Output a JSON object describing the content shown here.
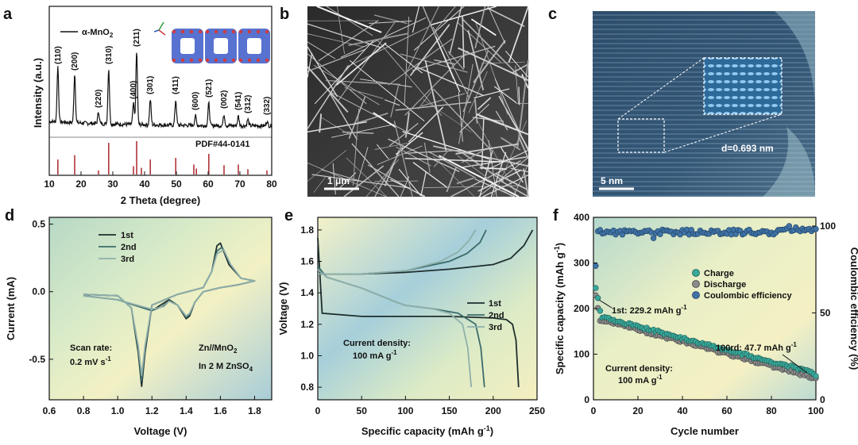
{
  "panels": {
    "a": {
      "letter": "a",
      "legend": "α-MnO",
      "legend_sub": "2",
      "ylabel": "Intensity (a.u.)",
      "xlabel": "2 Theta (degree)",
      "pdf": "PDF#44-0141",
      "xticks": [
        "10",
        "20",
        "30",
        "40",
        "50",
        "60",
        "70",
        "80"
      ],
      "peaks": [
        {
          "label": "(110)",
          "x": 12.7
        },
        {
          "label": "(200)",
          "x": 18.0
        },
        {
          "label": "(220)",
          "x": 25.5
        },
        {
          "label": "(310)",
          "x": 28.7
        },
        {
          "label": "(400)",
          "x": 36.5
        },
        {
          "label": "(211)",
          "x": 37.5
        },
        {
          "label": "(301)",
          "x": 41.8
        },
        {
          "label": "(411)",
          "x": 49.8
        },
        {
          "label": "(600)",
          "x": 56.0
        },
        {
          "label": "(521)",
          "x": 60.2
        },
        {
          "label": "(002)",
          "x": 65.0
        },
        {
          "label": "(541)",
          "x": 69.5
        },
        {
          "label": "(312)",
          "x": 72.5
        },
        {
          "label": "(332)",
          "x": 78.5
        }
      ],
      "ref_lines": [
        {
          "x": 12.7,
          "h": 0.45
        },
        {
          "x": 18.0,
          "h": 0.58
        },
        {
          "x": 25.5,
          "h": 0.12
        },
        {
          "x": 28.7,
          "h": 0.95
        },
        {
          "x": 36.5,
          "h": 0.25
        },
        {
          "x": 37.5,
          "h": 1.0
        },
        {
          "x": 39.0,
          "h": 0.2
        },
        {
          "x": 41.8,
          "h": 0.45
        },
        {
          "x": 49.8,
          "h": 0.5
        },
        {
          "x": 55.5,
          "h": 0.3
        },
        {
          "x": 56.3,
          "h": 0.18
        },
        {
          "x": 60.2,
          "h": 0.62
        },
        {
          "x": 65.0,
          "h": 0.28
        },
        {
          "x": 69.5,
          "h": 0.3
        },
        {
          "x": 72.5,
          "h": 0.16
        },
        {
          "x": 78.5,
          "h": 0.12
        }
      ]
    },
    "b": {
      "letter": "b",
      "scale": "1 μm"
    },
    "c": {
      "letter": "c",
      "scale": "5 nm",
      "dspacing": "d=0.693 nm"
    },
    "d": {
      "letter": "d",
      "scan_rate": "Scan rate:",
      "scan_rate_value": "0.2 mV s",
      "scan_rate_sup": "-1",
      "cell": "Zn//MnO",
      "cell_sub": "2",
      "electrolyte": "In 2 M ZnSO",
      "electrolyte_sub": "4"
    },
    "e": {
      "letter": "e",
      "current_density": "Current density:",
      "current_density_value": "100 mA g",
      "current_density_sup": "-1"
    },
    "f": {
      "letter": "f",
      "first": "1st: 229.2 mAh g",
      "first_sup": "-1",
      "hundredth": "100rd: 47.7 mAh g",
      "hundredth_sup": "-1",
      "current_density": "Current density:",
      "current_density_value": "100 mA g",
      "current_density_sup": "-1"
    }
  },
  "colors": {
    "bg_green": "#bcdcc8",
    "bg_yellow": "#f4f2c6",
    "bg_blue": "#9cc8d6",
    "line_dark": "#1e2e2e",
    "line_mid": "#3b6b6b",
    "line_light": "#8fb0ab",
    "ref": "#b0353a",
    "cyan_dot": "#38a89a",
    "grey_dot": "#8a8a8a",
    "blue_dot": "#3f73a6"
  },
  "chart_data": [
    {
      "type": "line",
      "panel": "d",
      "xlabel": "Voltage (V)",
      "ylabel": "Current (mA)",
      "xlim": [
        0.6,
        1.9
      ],
      "ylim": [
        -0.8,
        0.55
      ],
      "xticks": [
        "0.6",
        "0.8",
        "1.0",
        "1.2",
        "1.4",
        "1.6",
        "1.8"
      ],
      "yticks": [
        "-0.5",
        "0.0",
        "0.5"
      ],
      "series": [
        {
          "name": "1st",
          "x": [
            0.8,
            1.0,
            1.08,
            1.12,
            1.14,
            1.16,
            1.2,
            1.35,
            1.5,
            1.55,
            1.58,
            1.6,
            1.65,
            1.72,
            1.8,
            1.7,
            1.6,
            1.5,
            1.45,
            1.42,
            1.4,
            1.35,
            1.3,
            1.25,
            1.2,
            1.0,
            0.8
          ],
          "y": [
            -0.02,
            -0.03,
            -0.12,
            -0.45,
            -0.7,
            -0.45,
            -0.1,
            -0.02,
            0.03,
            0.15,
            0.34,
            0.36,
            0.2,
            0.1,
            0.08,
            0.05,
            0.03,
            0.0,
            -0.08,
            -0.18,
            -0.2,
            -0.1,
            -0.06,
            -0.1,
            -0.14,
            -0.06,
            -0.03
          ]
        },
        {
          "name": "2nd",
          "x": [
            0.8,
            1.0,
            1.08,
            1.12,
            1.14,
            1.16,
            1.2,
            1.35,
            1.5,
            1.55,
            1.58,
            1.61,
            1.66,
            1.72,
            1.8,
            1.7,
            1.6,
            1.5,
            1.45,
            1.42,
            1.4,
            1.35,
            1.3,
            1.26,
            1.2,
            1.0,
            0.8
          ],
          "y": [
            -0.02,
            -0.03,
            -0.12,
            -0.42,
            -0.66,
            -0.42,
            -0.1,
            -0.02,
            0.03,
            0.15,
            0.3,
            0.33,
            0.2,
            0.1,
            0.08,
            0.05,
            0.03,
            0.0,
            -0.08,
            -0.17,
            -0.19,
            -0.1,
            -0.07,
            -0.11,
            -0.14,
            -0.06,
            -0.03
          ]
        },
        {
          "name": "3rd",
          "x": [
            0.8,
            1.0,
            1.08,
            1.12,
            1.14,
            1.16,
            1.2,
            1.35,
            1.5,
            1.55,
            1.58,
            1.62,
            1.66,
            1.72,
            1.8,
            1.7,
            1.6,
            1.5,
            1.45,
            1.42,
            1.4,
            1.35,
            1.3,
            1.27,
            1.2,
            1.0,
            0.8
          ],
          "y": [
            -0.02,
            -0.03,
            -0.12,
            -0.4,
            -0.62,
            -0.4,
            -0.1,
            -0.02,
            0.03,
            0.15,
            0.28,
            0.31,
            0.2,
            0.1,
            0.08,
            0.05,
            0.03,
            0.0,
            -0.08,
            -0.16,
            -0.18,
            -0.1,
            -0.07,
            -0.11,
            -0.13,
            -0.06,
            -0.03
          ]
        }
      ]
    },
    {
      "type": "line",
      "panel": "e",
      "xlabel": "Specific capacity (mAh g",
      "xlabel_sup": "-1",
      "xlabel_end": ")",
      "ylabel": "Voltage (V)",
      "xlim": [
        0,
        250
      ],
      "ylim": [
        0.72,
        1.88
      ],
      "xticks": [
        "0",
        "50",
        "100",
        "150",
        "200",
        "250"
      ],
      "yticks": [
        "0.8",
        "1.0",
        "1.2",
        "1.4",
        "1.6",
        "1.8"
      ],
      "series": [
        {
          "name": "1st",
          "x": [
            0,
            5,
            50,
            100,
            150,
            200,
            215,
            222,
            226,
            229
          ],
          "y": [
            1.75,
            1.27,
            1.25,
            1.25,
            1.25,
            1.24,
            1.23,
            1.2,
            1.1,
            0.8
          ],
          "charge_x": [
            0,
            50,
            100,
            150,
            200,
            220,
            235,
            245
          ],
          "charge_y": [
            1.52,
            1.52,
            1.53,
            1.55,
            1.58,
            1.62,
            1.7,
            1.8
          ]
        },
        {
          "name": "2nd",
          "x": [
            0,
            10,
            50,
            90,
            100,
            130,
            160,
            180,
            186,
            190
          ],
          "y": [
            1.57,
            1.5,
            1.43,
            1.34,
            1.32,
            1.3,
            1.27,
            1.2,
            1.05,
            0.8
          ],
          "charge_x": [
            0,
            50,
            100,
            150,
            170,
            185,
            192
          ],
          "charge_y": [
            1.52,
            1.52,
            1.54,
            1.6,
            1.65,
            1.72,
            1.8
          ]
        },
        {
          "name": "3rd",
          "x": [
            0,
            10,
            50,
            90,
            100,
            130,
            150,
            165,
            171,
            175
          ],
          "y": [
            1.55,
            1.5,
            1.43,
            1.34,
            1.32,
            1.3,
            1.27,
            1.2,
            1.05,
            0.8
          ],
          "charge_x": [
            0,
            50,
            100,
            140,
            160,
            172,
            180
          ],
          "charge_y": [
            1.52,
            1.52,
            1.54,
            1.6,
            1.66,
            1.73,
            1.8
          ]
        }
      ]
    },
    {
      "type": "scatter",
      "panel": "f",
      "xlabel": "Cycle number",
      "ylabel": "Specific capacity (mAh g",
      "ylabel_sup": "-1",
      "ylabel_end": ")",
      "y2label": "Coulombic efficiency (%)",
      "xlim": [
        0,
        100
      ],
      "ylim": [
        0,
        400
      ],
      "y2lim": [
        0,
        105
      ],
      "xticks": [
        "0",
        "20",
        "40",
        "60",
        "80",
        "100"
      ],
      "yticks": [
        "0",
        "100",
        "200",
        "300",
        "400"
      ],
      "y2ticks": [
        "0",
        "50",
        "100"
      ],
      "series": [
        {
          "name": "Charge",
          "x_start": 1,
          "x_end": 100,
          "y_start": 245,
          "y_end": 52
        },
        {
          "name": "Discharge",
          "x_start": 1,
          "x_end": 100,
          "y_start": 229.2,
          "y_end": 47.7
        },
        {
          "name": "Coulombic efficiency",
          "x_start": 1,
          "x_end": 100,
          "y_start": 77,
          "y_end": 100
        }
      ]
    }
  ]
}
